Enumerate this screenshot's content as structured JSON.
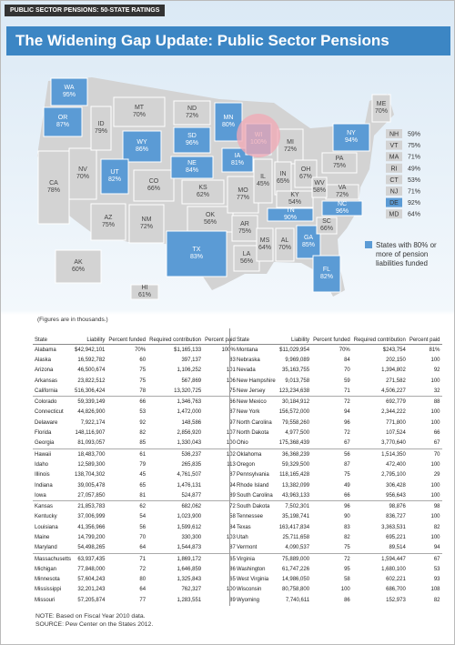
{
  "header": {
    "tag": "PUBLIC SECTOR PENSIONS: 50-STATE RATINGS",
    "title": "The Widening Gap Update: Public Sector Pensions"
  },
  "map": {
    "states": [
      {
        "abbr": "WA",
        "label": "95%",
        "color": "#5b9bd5"
      },
      {
        "abbr": "OR",
        "label": "87%",
        "color": "#5b9bd5"
      },
      {
        "abbr": "CA",
        "label": "78%",
        "color": "#d3d3d3"
      },
      {
        "abbr": "NV",
        "label": "70%",
        "color": "#d3d3d3"
      },
      {
        "abbr": "ID",
        "label": "79%",
        "color": "#d3d3d3"
      },
      {
        "abbr": "MT",
        "label": "70%",
        "color": "#d3d3d3"
      },
      {
        "abbr": "WY",
        "label": "86%",
        "color": "#5b9bd5"
      },
      {
        "abbr": "UT",
        "label": "82%",
        "color": "#5b9bd5"
      },
      {
        "abbr": "AZ",
        "label": "75%",
        "color": "#d3d3d3"
      },
      {
        "abbr": "CO",
        "label": "66%",
        "color": "#d3d3d3"
      },
      {
        "abbr": "NM",
        "label": "72%",
        "color": "#d3d3d3"
      },
      {
        "abbr": "ND",
        "label": "72%",
        "color": "#d3d3d3"
      },
      {
        "abbr": "SD",
        "label": "96%",
        "color": "#5b9bd5"
      },
      {
        "abbr": "NE",
        "label": "84%",
        "color": "#5b9bd5"
      },
      {
        "abbr": "KS",
        "label": "62%",
        "color": "#d3d3d3"
      },
      {
        "abbr": "OK",
        "label": "56%",
        "color": "#d3d3d3"
      },
      {
        "abbr": "TX",
        "label": "83%",
        "color": "#5b9bd5"
      },
      {
        "abbr": "MN",
        "label": "80%",
        "color": "#5b9bd5"
      },
      {
        "abbr": "IA",
        "label": "81%",
        "color": "#5b9bd5"
      },
      {
        "abbr": "MO",
        "label": "77%",
        "color": "#d3d3d3"
      },
      {
        "abbr": "AR",
        "label": "75%",
        "color": "#d3d3d3"
      },
      {
        "abbr": "LA",
        "label": "56%",
        "color": "#d3d3d3"
      },
      {
        "abbr": "WI",
        "label": "100%",
        "color": "#5b9bd5"
      },
      {
        "abbr": "MI",
        "label": "72%",
        "color": "#d3d3d3"
      },
      {
        "abbr": "IL",
        "label": "45%",
        "color": "#d3d3d3"
      },
      {
        "abbr": "IN",
        "label": "65%",
        "color": "#d3d3d3"
      },
      {
        "abbr": "OH",
        "label": "67%",
        "color": "#d3d3d3"
      },
      {
        "abbr": "KY",
        "label": "54%",
        "color": "#d3d3d3"
      },
      {
        "abbr": "TN",
        "label": "90%",
        "color": "#5b9bd5"
      },
      {
        "abbr": "MS",
        "label": "64%",
        "color": "#d3d3d3"
      },
      {
        "abbr": "AL",
        "label": "70%",
        "color": "#d3d3d3"
      },
      {
        "abbr": "GA",
        "label": "85%",
        "color": "#5b9bd5"
      },
      {
        "abbr": "FL",
        "label": "82%",
        "color": "#5b9bd5"
      },
      {
        "abbr": "SC",
        "label": "66%",
        "color": "#d3d3d3"
      },
      {
        "abbr": "NC",
        "label": "96%",
        "color": "#5b9bd5"
      },
      {
        "abbr": "VA",
        "label": "72%",
        "color": "#d3d3d3"
      },
      {
        "abbr": "WV",
        "label": "58%",
        "color": "#d3d3d3"
      },
      {
        "abbr": "PA",
        "label": "75%",
        "color": "#d3d3d3"
      },
      {
        "abbr": "NY",
        "label": "94%",
        "color": "#5b9bd5"
      },
      {
        "abbr": "ME",
        "label": "70%",
        "color": "#d3d3d3"
      },
      {
        "abbr": "AK",
        "label": "60%",
        "color": "#d3d3d3"
      },
      {
        "abbr": "HI",
        "label": "61%",
        "color": "#d3d3d3"
      }
    ],
    "small_states": [
      {
        "abbr": "NH",
        "label": "59%",
        "color": "#d3d3d3"
      },
      {
        "abbr": "VT",
        "label": "75%",
        "color": "#d3d3d3"
      },
      {
        "abbr": "MA",
        "label": "71%",
        "color": "#d3d3d3"
      },
      {
        "abbr": "RI",
        "label": "49%",
        "color": "#d3d3d3"
      },
      {
        "abbr": "CT",
        "label": "53%",
        "color": "#d3d3d3"
      },
      {
        "abbr": "NJ",
        "label": "71%",
        "color": "#d3d3d3"
      },
      {
        "abbr": "DE",
        "label": "92%",
        "color": "#5b9bd5"
      },
      {
        "abbr": "MD",
        "label": "64%",
        "color": "#d3d3d3"
      }
    ],
    "legend": {
      "text": "States with 80% or more of pension liabilities funded",
      "color": "#5b9bd5"
    }
  },
  "table": {
    "note": "(Figures are in thousands.)",
    "columns": [
      "State",
      "Liability",
      "Percent funded",
      "Required contribution",
      "Percent paid"
    ],
    "left_rows": [
      [
        "Alabama",
        "$42,942,101",
        "70%",
        "$1,165,133",
        "100%"
      ],
      [
        "Alaska",
        "16,592,782",
        "60",
        "397,137",
        "83"
      ],
      [
        "Arizona",
        "46,500,674",
        "75",
        "1,106,252",
        "101"
      ],
      [
        "Arkansas",
        "23,822,512",
        "75",
        "567,869",
        "106"
      ],
      [
        "California",
        "516,306,424",
        "78",
        "13,320,725",
        "75"
      ],
      [
        "Colorado",
        "59,339,149",
        "66",
        "1,346,763",
        "66"
      ],
      [
        "Connecticut",
        "44,826,900",
        "53",
        "1,472,000",
        "87"
      ],
      [
        "Delaware",
        "7,922,174",
        "92",
        "148,586",
        "97"
      ],
      [
        "Florida",
        "148,116,907",
        "82",
        "2,856,920",
        "107"
      ],
      [
        "Georgia",
        "81,093,057",
        "85",
        "1,330,043",
        "100"
      ],
      [
        "Hawaii",
        "18,483,700",
        "61",
        "536,237",
        "102"
      ],
      [
        "Idaho",
        "12,589,300",
        "79",
        "265,835",
        "113"
      ],
      [
        "Illinois",
        "138,704,302",
        "45",
        "4,761,507",
        "87"
      ],
      [
        "Indiana",
        "39,005,478",
        "65",
        "1,476,131",
        "94"
      ],
      [
        "Iowa",
        "27,057,850",
        "81",
        "524,877",
        "89"
      ],
      [
        "Kansas",
        "21,853,783",
        "62",
        "682,062",
        "72"
      ],
      [
        "Kentucky",
        "37,006,999",
        "54",
        "1,023,900",
        "58"
      ],
      [
        "Louisiana",
        "41,356,966",
        "56",
        "1,599,612",
        "84"
      ],
      [
        "Maine",
        "14,799,200",
        "70",
        "330,300",
        "103"
      ],
      [
        "Maryland",
        "54,498,265",
        "64",
        "1,544,873",
        "87"
      ],
      [
        "Massachusetts",
        "63,937,435",
        "71",
        "1,869,172",
        "65"
      ],
      [
        "Michigan",
        "77,848,000",
        "72",
        "1,646,859",
        "86"
      ],
      [
        "Minnesota",
        "57,604,243",
        "80",
        "1,325,843",
        "65"
      ],
      [
        "Mississippi",
        "32,201,243",
        "64",
        "762,327",
        "100"
      ],
      [
        "Missouri",
        "57,205,874",
        "77",
        "1,283,551",
        "89"
      ]
    ],
    "right_rows": [
      [
        "Montana",
        "$11,029,954",
        "70%",
        "$243,754",
        "81%"
      ],
      [
        "Nebraska",
        "9,969,089",
        "84",
        "202,150",
        "100"
      ],
      [
        "Nevada",
        "35,163,755",
        "70",
        "1,394,802",
        "92"
      ],
      [
        "New Hampshire",
        "9,013,758",
        "59",
        "271,582",
        "100"
      ],
      [
        "New Jersey",
        "123,234,638",
        "71",
        "4,506,227",
        "32"
      ],
      [
        "New Mexico",
        "30,184,912",
        "72",
        "692,779",
        "88"
      ],
      [
        "New York",
        "156,572,000",
        "94",
        "2,344,222",
        "100"
      ],
      [
        "North Carolina",
        "79,558,260",
        "96",
        "771,800",
        "100"
      ],
      [
        "North Dakota",
        "4,977,500",
        "72",
        "107,524",
        "66"
      ],
      [
        "Ohio",
        "175,368,439",
        "67",
        "3,770,640",
        "67"
      ],
      [
        "Oklahoma",
        "36,368,239",
        "56",
        "1,514,350",
        "70"
      ],
      [
        "Oregon",
        "59,329,500",
        "87",
        "472,400",
        "100"
      ],
      [
        "Pennsylvania",
        "118,165,428",
        "75",
        "2,795,100",
        "29"
      ],
      [
        "Rhode Island",
        "13,382,099",
        "49",
        "306,428",
        "100"
      ],
      [
        "South Carolina",
        "43,963,133",
        "66",
        "956,643",
        "100"
      ],
      [
        "South Dakota",
        "7,502,301",
        "96",
        "98,876",
        "98"
      ],
      [
        "Tennessee",
        "35,198,741",
        "90",
        "836,727",
        "100"
      ],
      [
        "Texas",
        "163,417,834",
        "83",
        "3,363,531",
        "82"
      ],
      [
        "Utah",
        "25,711,658",
        "82",
        "695,221",
        "100"
      ],
      [
        "Vermont",
        "4,090,537",
        "75",
        "89,514",
        "94"
      ],
      [
        "Virginia",
        "75,889,000",
        "72",
        "1,594,447",
        "67"
      ],
      [
        "Washington",
        "61,747,226",
        "95",
        "1,680,100",
        "53"
      ],
      [
        "West Virginia",
        "14,986,050",
        "58",
        "602,221",
        "93"
      ],
      [
        "Wisconsin",
        "80,758,800",
        "100",
        "686,700",
        "108"
      ],
      [
        "Wyoming",
        "7,740,611",
        "86",
        "152,973",
        "82"
      ]
    ]
  },
  "footer": {
    "note": "NOTE: Based on Fiscal Year 2010 data.",
    "source": "SOURCE: Pew Center on the States 2012."
  }
}
